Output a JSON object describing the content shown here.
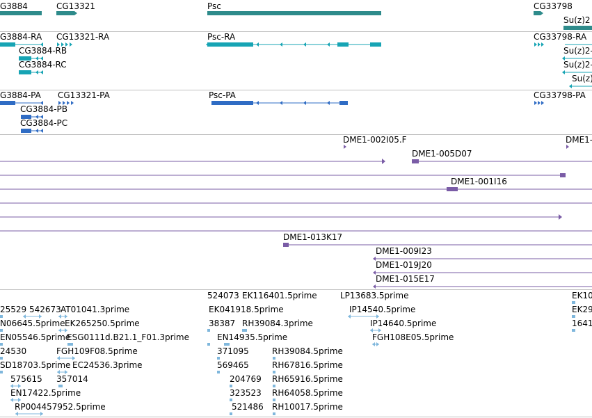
{
  "colors": {
    "gene": "#2e8b8b",
    "transcript": "#17a4b4",
    "protein": "#2f6cc4",
    "clone": "#7a5ca6",
    "est": "#7fb7dc",
    "separator": "#bfbfbf"
  },
  "genes": [
    {
      "label": "G3884"
    },
    {
      "label": "CG13321"
    },
    {
      "label": "Psc"
    },
    {
      "label": "CG33798"
    },
    {
      "label": "Su(z)2"
    }
  ],
  "transcripts": [
    {
      "label": "G3884-RA"
    },
    {
      "label": "CG13321-RA"
    },
    {
      "label": "Psc-RA"
    },
    {
      "label": "CG33798-RA"
    },
    {
      "label": "CG3884-RB"
    },
    {
      "label": "Su(z)2-"
    },
    {
      "label": "CG3884-RC"
    },
    {
      "label": "Su(z)2-"
    },
    {
      "label": "Su(z)"
    }
  ],
  "proteins": [
    {
      "label": "G3884-PA"
    },
    {
      "label": "CG13321-PA"
    },
    {
      "label": "Psc-PA"
    },
    {
      "label": "CG33798-PA"
    },
    {
      "label": "CG3884-PB"
    },
    {
      "label": "CG3884-PC"
    }
  ],
  "clones": [
    {
      "label": "DME1-002I05.F"
    },
    {
      "label": "DME1-"
    },
    {
      "label": "DME1-005D07"
    },
    {
      "label": "DME1-001I16"
    },
    {
      "label": "DME1-013K17"
    },
    {
      "label": "DME1-009I23"
    },
    {
      "label": "DME1-019J20"
    },
    {
      "label": "DME1-015E17"
    }
  ],
  "ests": [
    {
      "label": "524073"
    },
    {
      "label": "EK116401.5prime"
    },
    {
      "label": "LP13683.5prime"
    },
    {
      "label": "EK10"
    },
    {
      "label": "25529"
    },
    {
      "label": "542673"
    },
    {
      "label": "AT01041.3prime"
    },
    {
      "label": "EK041918.5prime"
    },
    {
      "label": "IP14540.5prime"
    },
    {
      "label": "EK29"
    },
    {
      "label": "N06645.5prime"
    },
    {
      "label": "EK265250.5prime"
    },
    {
      "label": "38387"
    },
    {
      "label": "RH39084.3prime"
    },
    {
      "label": "IP14640.5prime"
    },
    {
      "label": "1641"
    },
    {
      "label": "EN05546.5prime"
    },
    {
      "label": "ESG0111d.B21.1_F01.3prime"
    },
    {
      "label": "EN14935.5prime"
    },
    {
      "label": "FGH108E05.5prime"
    },
    {
      "label": "24530"
    },
    {
      "label": "FGH109F08.5prime"
    },
    {
      "label": "371095"
    },
    {
      "label": "RH39084.5prime"
    },
    {
      "label": "SD18703.5prime"
    },
    {
      "label": "EC24536.3prime"
    },
    {
      "label": "569465"
    },
    {
      "label": "RH67816.5prime"
    },
    {
      "label": "575615"
    },
    {
      "label": "357014"
    },
    {
      "label": "204769"
    },
    {
      "label": "RH65916.5prime"
    },
    {
      "label": "EN17422.5prime"
    },
    {
      "label": "323523"
    },
    {
      "label": "RH64058.5prime"
    },
    {
      "label": "RP004457952.5prime"
    },
    {
      "label": "521486"
    },
    {
      "label": "RH10017.5prime"
    }
  ]
}
